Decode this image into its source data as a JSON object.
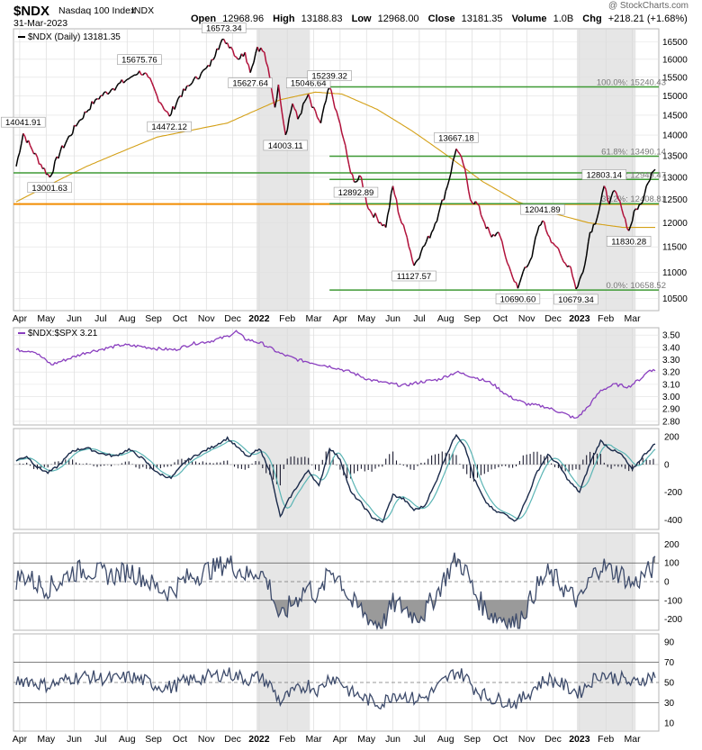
{
  "header": {
    "symbol": "$NDX",
    "name": "Nasdaq 100 Index",
    "exchange": "INDX",
    "date": "31-Mar-2023",
    "watermark": "@ StockCharts.com",
    "open_label": "Open",
    "open": "12968.96",
    "high_label": "High",
    "high": "13188.83",
    "low_label": "Low",
    "low": "12968.00",
    "close_label": "Close",
    "close": "13181.35",
    "volume_label": "Volume",
    "volume": "1.0B",
    "chg_label": "Chg",
    "chg": "+218.21 (+1.68%)"
  },
  "colors": {
    "up": "#000000",
    "down": "#b0103a",
    "ma200": "#d4a017",
    "fib": "#3f9a35",
    "support": "#f28c00",
    "relative": "#8a3fbf",
    "macd": "#1a2a4a",
    "macd_signal": "#5bb5b5",
    "oscillator": "#3d4b6b",
    "shade": "#e6e6e6"
  },
  "chart_data": [
    {
      "type": "line",
      "panel": "price",
      "legend": "$NDX (Daily) 13181.35",
      "x_labels": [
        "Apr",
        "May",
        "Jun",
        "Jul",
        "Aug",
        "Sep",
        "Oct",
        "Nov",
        "Dec",
        "2022",
        "Feb",
        "Mar",
        "Apr",
        "May",
        "Jun",
        "Jul",
        "Aug",
        "Sep",
        "Oct",
        "Nov",
        "Dec",
        "2023",
        "Feb",
        "Mar"
      ],
      "y_ticks": [
        10500,
        11000,
        11500,
        12000,
        12500,
        13000,
        13500,
        14000,
        14500,
        15000,
        15500,
        16000,
        16500
      ],
      "ylim": [
        10280,
        16880
      ],
      "y_scale": "log",
      "anchors": [
        [
          0,
          13250
        ],
        [
          4,
          14041.91
        ],
        [
          9,
          13650
        ],
        [
          14,
          13300
        ],
        [
          19,
          13001.63
        ],
        [
          25,
          13600
        ],
        [
          35,
          14300
        ],
        [
          45,
          14900
        ],
        [
          55,
          15200
        ],
        [
          65,
          15500
        ],
        [
          70,
          15675.76
        ],
        [
          75,
          15500
        ],
        [
          80,
          15000
        ],
        [
          87,
          14472.12
        ],
        [
          93,
          15000
        ],
        [
          100,
          15350
        ],
        [
          105,
          15600
        ],
        [
          110,
          15800
        ],
        [
          114,
          16300
        ],
        [
          118,
          16573.34
        ],
        [
          122,
          16350
        ],
        [
          126,
          16000
        ],
        [
          130,
          16200
        ],
        [
          133,
          15627.64
        ],
        [
          137,
          16350
        ],
        [
          141,
          16200
        ],
        [
          145,
          15200
        ],
        [
          147,
          14700
        ],
        [
          149,
          15300
        ],
        [
          153,
          14003.11
        ],
        [
          157,
          14800
        ],
        [
          160,
          14400
        ],
        [
          166,
          15046.64
        ],
        [
          168,
          14700
        ],
        [
          173,
          14300
        ],
        [
          178,
          15239.32
        ],
        [
          182,
          14600
        ],
        [
          186,
          13900
        ],
        [
          190,
          13100
        ],
        [
          193,
          12892.89
        ],
        [
          196,
          13000
        ],
        [
          200,
          12300
        ],
        [
          205,
          12100
        ],
        [
          210,
          11900
        ],
        [
          214,
          12800
        ],
        [
          218,
          12100
        ],
        [
          222,
          11700
        ],
        [
          226,
          11127.57
        ],
        [
          230,
          11400
        ],
        [
          236,
          11800
        ],
        [
          240,
          12200
        ],
        [
          245,
          12800
        ],
        [
          250,
          13667.18
        ],
        [
          254,
          13300
        ],
        [
          258,
          12500
        ],
        [
          262,
          12400
        ],
        [
          266,
          12000
        ],
        [
          270,
          11700
        ],
        [
          274,
          11800
        ],
        [
          278,
          11300
        ],
        [
          282,
          10900
        ],
        [
          285,
          10690.6
        ],
        [
          289,
          11100
        ],
        [
          293,
          11300
        ],
        [
          296,
          11800
        ],
        [
          299,
          12041.89
        ],
        [
          303,
          11700
        ],
        [
          307,
          11500
        ],
        [
          311,
          11200
        ],
        [
          315,
          11100
        ],
        [
          318,
          10679.34
        ],
        [
          322,
          11000
        ],
        [
          326,
          11800
        ],
        [
          330,
          12100
        ],
        [
          334,
          12803.14
        ],
        [
          337,
          12400
        ],
        [
          340,
          12700
        ],
        [
          344,
          12300
        ],
        [
          348,
          11830.28
        ],
        [
          352,
          12300
        ],
        [
          355,
          12400
        ],
        [
          358,
          12800
        ],
        [
          361,
          13100
        ],
        [
          363,
          13181.35
        ]
      ],
      "ma200": [
        [
          0,
          12450
        ],
        [
          40,
          13250
        ],
        [
          80,
          13950
        ],
        [
          120,
          14300
        ],
        [
          150,
          14900
        ],
        [
          170,
          15100
        ],
        [
          185,
          15050
        ],
        [
          205,
          14650
        ],
        [
          225,
          14100
        ],
        [
          245,
          13500
        ],
        [
          265,
          12900
        ],
        [
          285,
          12450
        ],
        [
          305,
          12200
        ],
        [
          325,
          12000
        ],
        [
          345,
          11900
        ],
        [
          363,
          11900
        ]
      ],
      "price_labels": [
        {
          "i": 4,
          "v": 14041.91,
          "text": "14041.91"
        },
        {
          "i": 19,
          "v": 13001.63,
          "text": "13001.63"
        },
        {
          "i": 70,
          "v": 15675.76,
          "text": "15675.76"
        },
        {
          "i": 87,
          "v": 14472.12,
          "text": "14472.12"
        },
        {
          "i": 118,
          "v": 16573.34,
          "text": "16573.34"
        },
        {
          "i": 133,
          "v": 15627.64,
          "text": "15627.64"
        },
        {
          "i": 153,
          "v": 14003.11,
          "text": "14003.11"
        },
        {
          "i": 166,
          "v": 15046.64,
          "text": "15046.64"
        },
        {
          "i": 178,
          "v": 15239.32,
          "text": "15239.32"
        },
        {
          "i": 193,
          "v": 12892.89,
          "text": "12892.89"
        },
        {
          "i": 226,
          "v": 11127.57,
          "text": "11127.57"
        },
        {
          "i": 250,
          "v": 13667.18,
          "text": "13667.18"
        },
        {
          "i": 285,
          "v": 10690.6,
          "text": "10690.60"
        },
        {
          "i": 299,
          "v": 12041.89,
          "text": "12041.89"
        },
        {
          "i": 318,
          "v": 10679.34,
          "text": "10679.34"
        },
        {
          "i": 334,
          "v": 12803.14,
          "text": "12803.14"
        },
        {
          "i": 348,
          "v": 11830.28,
          "text": "11830.28"
        }
      ],
      "fib_levels": [
        {
          "v": 15240.43,
          "text": "100.0%: 15240.43"
        },
        {
          "v": 13490.14,
          "text": "61.8%: 13490.14"
        },
        {
          "v": 12949.47,
          "text": "50.0%: 12949.47"
        },
        {
          "v": 12408.81,
          "text": "38.2%: 12408.81"
        },
        {
          "v": 10658.52,
          "text": "0.0%: 10658.52"
        }
      ],
      "support_level": 12400,
      "resistance_level": 13100,
      "shaded_ranges": [
        [
          9,
          11
        ],
        [
          21,
          23
        ]
      ]
    },
    {
      "type": "line",
      "panel": "relative",
      "legend": "$NDX:$SPX 3.21",
      "y_ticks": [
        2.8,
        2.9,
        3.0,
        3.1,
        3.2,
        3.3,
        3.4,
        3.5
      ],
      "ylim": [
        2.77,
        3.56
      ],
      "anchors": [
        [
          0,
          3.38
        ],
        [
          10,
          3.37
        ],
        [
          20,
          3.26
        ],
        [
          30,
          3.31
        ],
        [
          40,
          3.36
        ],
        [
          50,
          3.39
        ],
        [
          60,
          3.42
        ],
        [
          70,
          3.41
        ],
        [
          80,
          3.39
        ],
        [
          90,
          3.38
        ],
        [
          100,
          3.43
        ],
        [
          110,
          3.45
        ],
        [
          120,
          3.49
        ],
        [
          125,
          3.53
        ],
        [
          130,
          3.47
        ],
        [
          140,
          3.43
        ],
        [
          150,
          3.35
        ],
        [
          160,
          3.3
        ],
        [
          170,
          3.27
        ],
        [
          180,
          3.24
        ],
        [
          190,
          3.2
        ],
        [
          200,
          3.14
        ],
        [
          210,
          3.11
        ],
        [
          220,
          3.09
        ],
        [
          230,
          3.12
        ],
        [
          240,
          3.14
        ],
        [
          250,
          3.2
        ],
        [
          260,
          3.16
        ],
        [
          270,
          3.11
        ],
        [
          280,
          3.0
        ],
        [
          290,
          2.94
        ],
        [
          300,
          2.92
        ],
        [
          310,
          2.87
        ],
        [
          318,
          2.82
        ],
        [
          325,
          2.92
        ],
        [
          332,
          3.05
        ],
        [
          340,
          3.1
        ],
        [
          348,
          3.08
        ],
        [
          355,
          3.15
        ],
        [
          360,
          3.22
        ],
        [
          363,
          3.21
        ]
      ]
    },
    {
      "type": "bar",
      "panel": "macd",
      "y_ticks": [
        -400,
        -200,
        0,
        200
      ],
      "ylim": [
        -470,
        260
      ],
      "macd_anchors": [
        [
          0,
          30
        ],
        [
          6,
          60
        ],
        [
          12,
          -20
        ],
        [
          18,
          -60
        ],
        [
          24,
          -10
        ],
        [
          32,
          100
        ],
        [
          40,
          120
        ],
        [
          48,
          80
        ],
        [
          56,
          60
        ],
        [
          64,
          110
        ],
        [
          72,
          40
        ],
        [
          80,
          -60
        ],
        [
          88,
          -100
        ],
        [
          96,
          20
        ],
        [
          104,
          80
        ],
        [
          112,
          130
        ],
        [
          120,
          190
        ],
        [
          126,
          120
        ],
        [
          132,
          50
        ],
        [
          138,
          120
        ],
        [
          144,
          -40
        ],
        [
          150,
          -380
        ],
        [
          155,
          -250
        ],
        [
          160,
          -150
        ],
        [
          166,
          -40
        ],
        [
          172,
          -160
        ],
        [
          178,
          120
        ],
        [
          184,
          40
        ],
        [
          190,
          -200
        ],
        [
          196,
          -280
        ],
        [
          202,
          -380
        ],
        [
          208,
          -420
        ],
        [
          214,
          -220
        ],
        [
          220,
          -250
        ],
        [
          226,
          -330
        ],
        [
          232,
          -300
        ],
        [
          238,
          -140
        ],
        [
          244,
          60
        ],
        [
          250,
          220
        ],
        [
          255,
          130
        ],
        [
          260,
          -100
        ],
        [
          266,
          -260
        ],
        [
          272,
          -340
        ],
        [
          278,
          -360
        ],
        [
          284,
          -410
        ],
        [
          290,
          -250
        ],
        [
          296,
          -50
        ],
        [
          302,
          70
        ],
        [
          308,
          0
        ],
        [
          314,
          -120
        ],
        [
          320,
          -200
        ],
        [
          326,
          10
        ],
        [
          332,
          170
        ],
        [
          338,
          110
        ],
        [
          344,
          70
        ],
        [
          350,
          -40
        ],
        [
          356,
          60
        ],
        [
          363,
          150
        ]
      ],
      "signal_lag": 6
    },
    {
      "type": "line",
      "panel": "cci",
      "y_ticks": [
        -200,
        -100,
        0,
        100,
        200
      ],
      "ylim": [
        -260,
        260
      ],
      "reference_lines": [
        100,
        -100
      ]
    },
    {
      "type": "line",
      "panel": "rsi",
      "y_ticks": [
        10,
        30,
        50,
        70,
        90
      ],
      "ylim": [
        2,
        98
      ],
      "reference_lines": [
        70,
        30
      ]
    }
  ]
}
